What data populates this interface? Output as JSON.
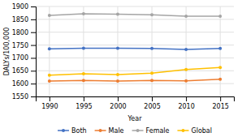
{
  "chart_data": {
    "type": "line",
    "x": [
      1990,
      1995,
      2000,
      2005,
      2010,
      2015
    ],
    "xlabel": "Year",
    "ylabel": "DALYs/100,000",
    "xlim": [
      1988,
      2017
    ],
    "xticks": [
      1990,
      1995,
      2000,
      2005,
      2010,
      2015
    ],
    "ylim": [
      1550,
      1900
    ],
    "yticks": [
      1550,
      1600,
      1650,
      1700,
      1750,
      1800,
      1850,
      1900
    ],
    "grid": true,
    "legend": "bottom",
    "marker": "circle",
    "series": [
      {
        "name": "Both",
        "color": "#4472C4",
        "values": [
          1735,
          1738,
          1738,
          1737,
          1733,
          1737
        ]
      },
      {
        "name": "Male",
        "color": "#ED7D31",
        "values": [
          1610,
          1612,
          1610,
          1612,
          1611,
          1617
        ]
      },
      {
        "name": "Female",
        "color": "#A5A5A5",
        "values": [
          1865,
          1872,
          1870,
          1868,
          1862,
          1862
        ]
      },
      {
        "name": "Global",
        "color": "#FFC000",
        "values": [
          1633,
          1638,
          1635,
          1641,
          1655,
          1663
        ]
      }
    ]
  }
}
